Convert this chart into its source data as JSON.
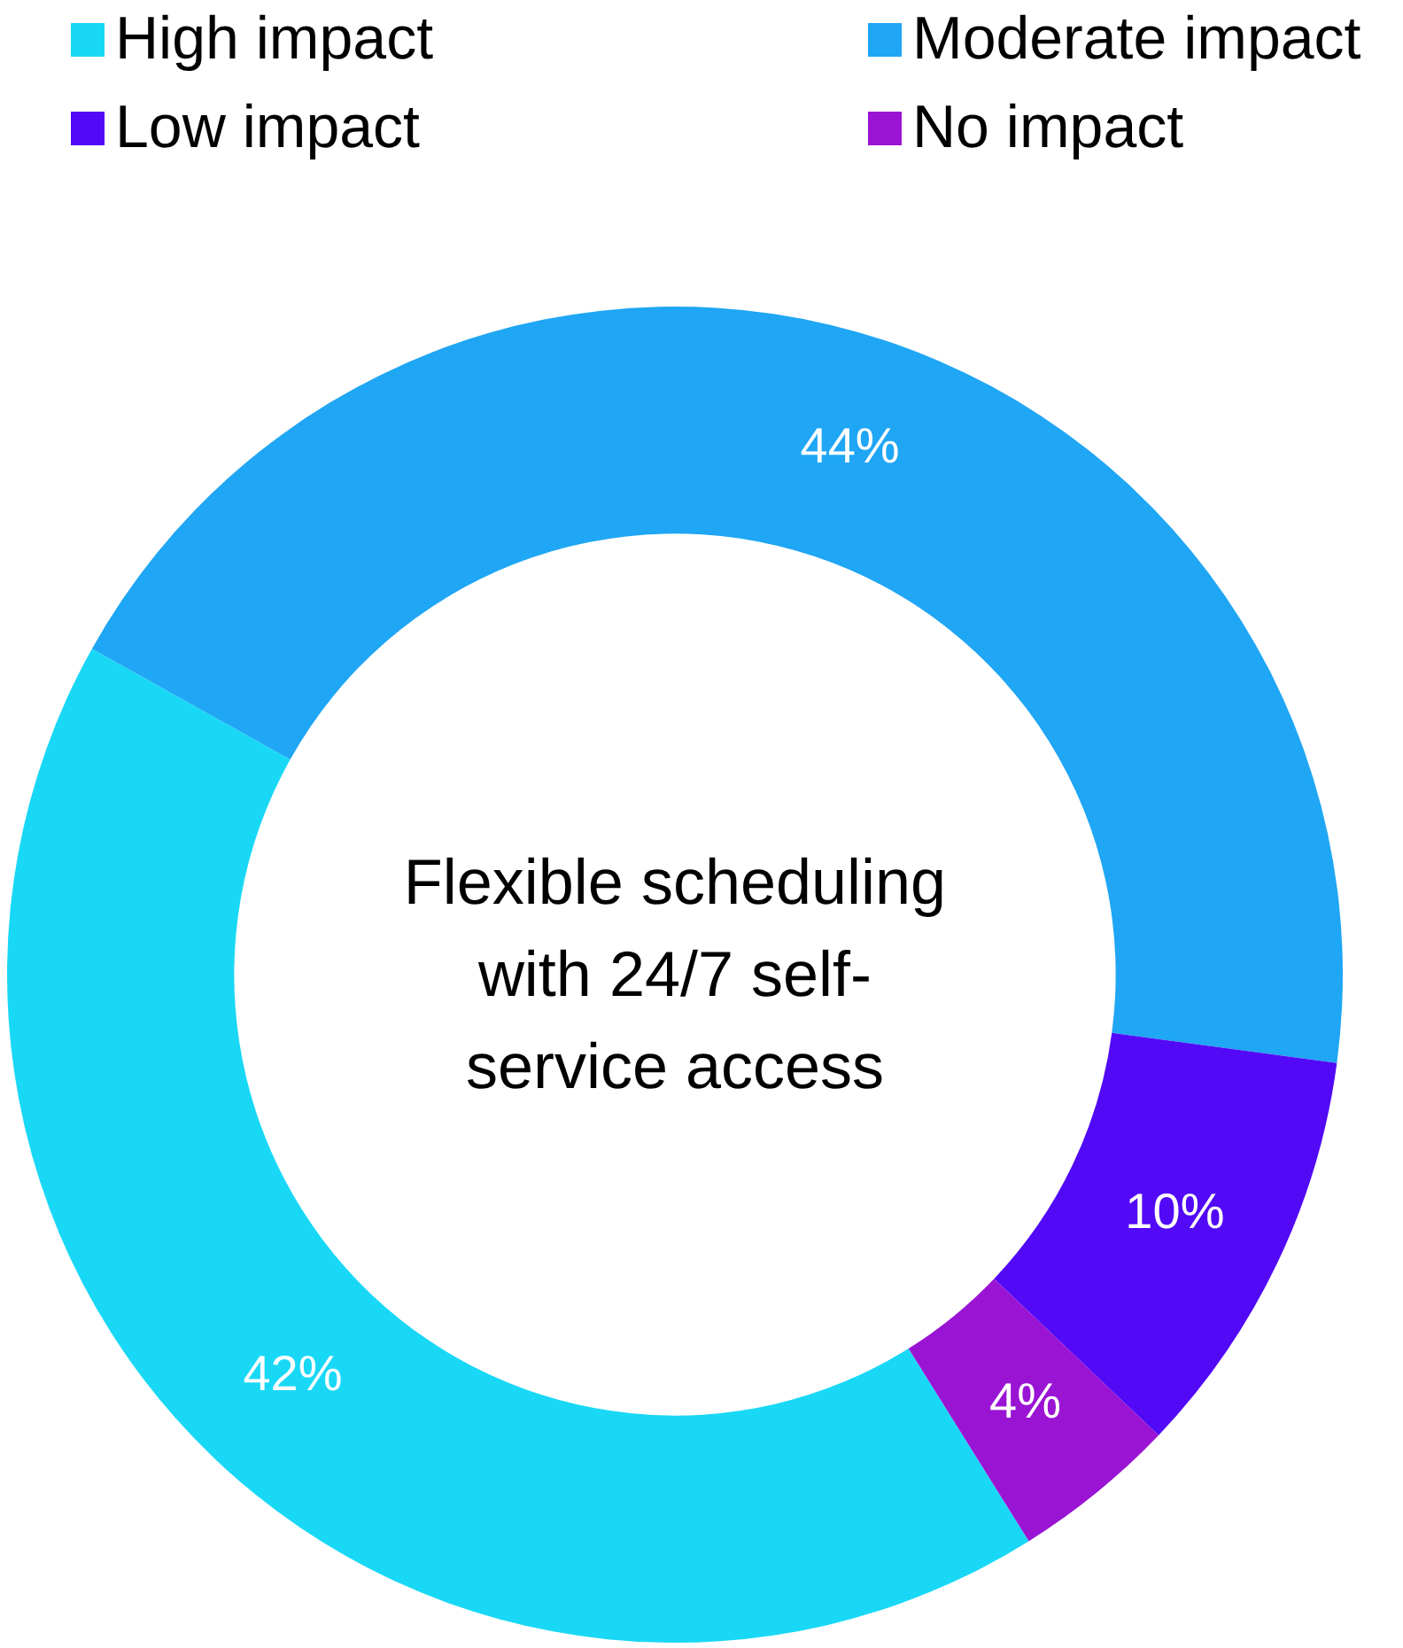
{
  "chart_data": {
    "type": "donut",
    "title": "Flexible scheduling with 24/7 self-service access",
    "categories": [
      "High impact",
      "Moderate impact",
      "Low impact",
      "No impact"
    ],
    "values": [
      42,
      44,
      10,
      4
    ],
    "colors": [
      "#19d8f6",
      "#1fa6f4",
      "#5209f6",
      "#9a14d4"
    ],
    "value_labels": [
      "42%",
      "44%",
      "10%",
      "4%"
    ],
    "legend": "top"
  }
}
